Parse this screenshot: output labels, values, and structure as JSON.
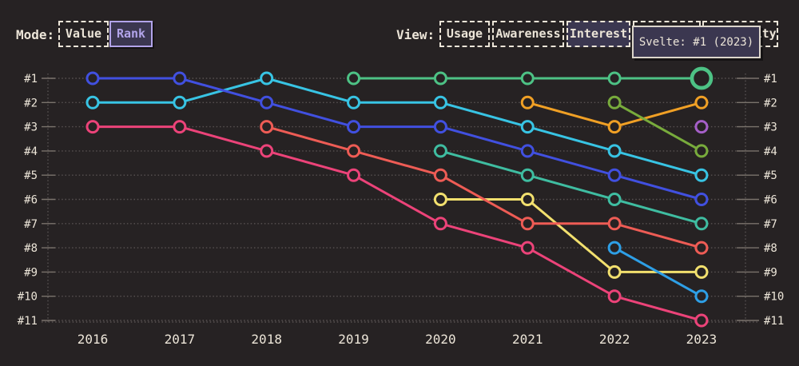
{
  "controls": {
    "mode": {
      "label": "Mode:",
      "options": [
        {
          "label": "Value",
          "selected": false
        },
        {
          "label": "Rank",
          "selected": true
        }
      ]
    },
    "view": {
      "label": "View:",
      "options": [
        {
          "label": "Usage",
          "selected": false
        },
        {
          "label": "Awareness",
          "selected": false
        },
        {
          "label": "Interest",
          "selected": true
        },
        {
          "label": "",
          "selected": false,
          "covered_by_tooltip": true
        },
        {
          "label": "Positivity",
          "selected": false,
          "covered_by_tooltip": true,
          "visible_fragment": "ty"
        }
      ]
    }
  },
  "tooltip": {
    "text": "Svelte: #1 (2023)"
  },
  "colors": {
    "background": "#262223",
    "cream_text": "#ece5d8",
    "purple_accent": "#b2a4ea",
    "selected_bg": "#3b3750",
    "grid": "#585252",
    "tick": "#7a736c"
  },
  "chart_data": {
    "type": "line",
    "title": "",
    "x_labels": [
      "2016",
      "2017",
      "2018",
      "2019",
      "2020",
      "2021",
      "2022",
      "2023"
    ],
    "rank_labels": [
      "#1",
      "#2",
      "#3",
      "#4",
      "#5",
      "#6",
      "#7",
      "#8",
      "#9",
      "#10",
      "#11"
    ],
    "ylabel": "rank (#1 top .. #11 bottom, labels on both sides)",
    "xlabel": "year",
    "grid": "dotted horizontal rank lines, dotted vertical axis lines left and right",
    "legend_position": "none",
    "draw_order": "array order; first = bottom layer",
    "series": [
      {
        "id": "cyan",
        "color": "#38c4e4",
        "ranks": [
          2,
          2,
          1,
          2,
          2,
          3,
          4,
          5
        ]
      },
      {
        "id": "royal-blue",
        "color": "#4150e0",
        "ranks": [
          1,
          1,
          2,
          3,
          3,
          4,
          5,
          6
        ]
      },
      {
        "id": "magenta-pink",
        "color": "#ec4379",
        "ranks": [
          3,
          3,
          4,
          5,
          7,
          8,
          10,
          11
        ]
      },
      {
        "id": "teal",
        "color": "#3fbda1",
        "ranks": [
          null,
          null,
          null,
          null,
          4,
          5,
          6,
          7
        ]
      },
      {
        "id": "yellow",
        "color": "#f2e06e",
        "ranks": [
          null,
          null,
          null,
          null,
          6,
          6,
          9,
          9
        ]
      },
      {
        "id": "salmon-red",
        "color": "#ee5c55",
        "ranks": [
          null,
          null,
          3,
          4,
          5,
          7,
          7,
          8
        ]
      },
      {
        "id": "orange",
        "color": "#f0a025",
        "ranks": [
          null,
          null,
          null,
          null,
          null,
          2,
          3,
          2
        ]
      },
      {
        "id": "olive-green",
        "color": "#78ab3c",
        "ranks": [
          null,
          null,
          null,
          null,
          null,
          null,
          2,
          4
        ]
      },
      {
        "id": "sky-blue",
        "color": "#2e9fe6",
        "ranks": [
          null,
          null,
          null,
          null,
          null,
          null,
          8,
          10
        ]
      },
      {
        "id": "purple",
        "color": "#a55fc8",
        "ranks": [
          null,
          null,
          null,
          null,
          null,
          null,
          null,
          3
        ]
      },
      {
        "id": "svelte-green",
        "color": "#4dc285",
        "ranks": [
          null,
          null,
          null,
          1,
          1,
          1,
          1,
          1
        ],
        "name": "Svelte",
        "highlight_last": true
      }
    ]
  }
}
